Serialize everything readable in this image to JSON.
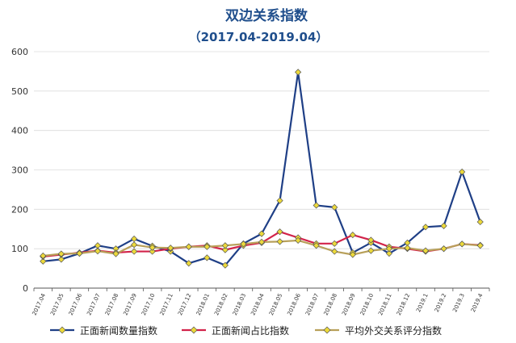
{
  "chart_data": {
    "type": "line",
    "title": "双边关系指数",
    "subtitle": "（2017.04-2019.04）",
    "categories": [
      "2017.04",
      "2017.05",
      "2017.06",
      "2017.07",
      "2017.08",
      "2017.09",
      "2017.10",
      "2017.11",
      "2017.12",
      "2018.01",
      "2018.02",
      "2018.03",
      "2018.04",
      "2018.05",
      "2018.06",
      "2018.07",
      "2018.08",
      "2018.09",
      "2018.10",
      "2018.11",
      "2018.12",
      "2019.1",
      "2019.2",
      "2019.3",
      "2019.4"
    ],
    "ylim": [
      0,
      600
    ],
    "yticks": [
      0,
      100,
      200,
      300,
      400,
      500,
      600
    ],
    "grid": "horizontal",
    "legend_position": "bottom",
    "series": [
      {
        "name": "正面新闻数量指数",
        "color": "#1f3f86",
        "values": [
          68,
          73,
          88,
          108,
          100,
          125,
          107,
          93,
          63,
          77,
          58,
          113,
          138,
          222,
          548,
          210,
          205,
          90,
          115,
          88,
          115,
          155,
          158,
          295,
          168
        ]
      },
      {
        "name": "正面新闻占比指数",
        "color": "#d2234a",
        "values": [
          80,
          85,
          90,
          95,
          90,
          93,
          93,
          100,
          105,
          108,
          97,
          108,
          115,
          143,
          128,
          113,
          113,
          135,
          122,
          105,
          100,
          93,
          100,
          112,
          109
        ]
      },
      {
        "name": "平均外交关系评分指数",
        "color": "#b8a05a",
        "values": [
          82,
          87,
          88,
          94,
          87,
          110,
          103,
          102,
          105,
          105,
          108,
          112,
          117,
          118,
          121,
          108,
          93,
          85,
          95,
          100,
          102,
          95,
          100,
          112,
          108
        ]
      }
    ]
  }
}
